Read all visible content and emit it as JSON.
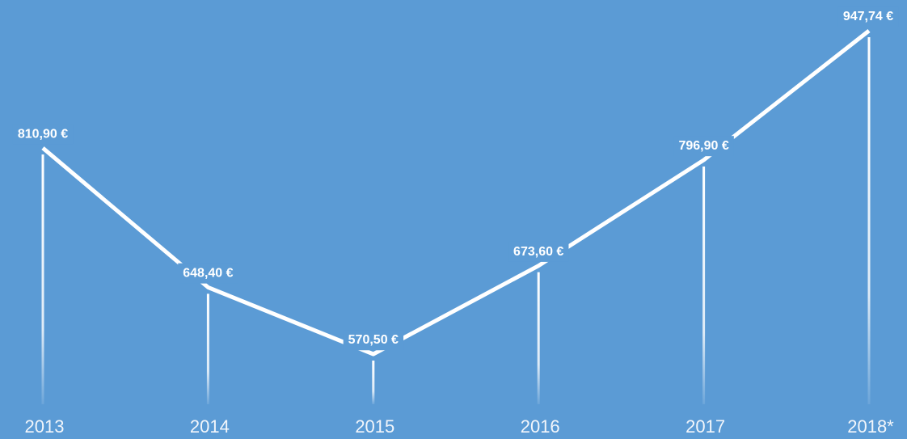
{
  "chart_data": {
    "type": "line",
    "categories": [
      "2013",
      "2014",
      "2015",
      "2016",
      "2017",
      "2018*"
    ],
    "series": [
      {
        "color": "#ffffff",
        "values": [
          810.9,
          648.4,
          570.5,
          673.6,
          796.9,
          947.74
        ],
        "value_labels": [
          "810,90 €",
          "648,40 €",
          "570,50 €",
          "673,60 €",
          "796,90 €",
          "947,74 €"
        ]
      }
    ]
  }
}
